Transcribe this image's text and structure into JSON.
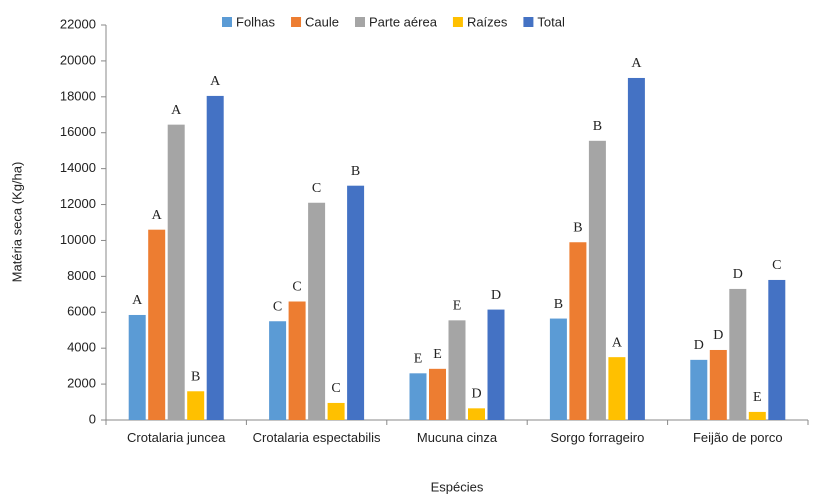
{
  "chart_data": {
    "type": "bar",
    "x_label": "Espécies",
    "y_label": "Matéria seca (Kg/ha)",
    "categories": [
      "Crotalaria juncea",
      "Crotalaria espectabilis",
      "Mucuna cinza",
      "Sorgo forrageiro",
      "Feijão de porco"
    ],
    "series": [
      {
        "name": "Folhas",
        "color": "#5b9bd5",
        "values": [
          5850,
          5500,
          2600,
          5650,
          3350
        ],
        "letters": [
          "A",
          "C",
          "E",
          "B",
          "D"
        ]
      },
      {
        "name": "Caule",
        "color": "#ed7d31",
        "values": [
          10600,
          6600,
          2850,
          9900,
          3900
        ],
        "letters": [
          "A",
          "C",
          "E",
          "B",
          "D"
        ]
      },
      {
        "name": "Parte aérea",
        "color": "#a5a5a5",
        "values": [
          16450,
          12100,
          5550,
          15550,
          7300
        ],
        "letters": [
          "A",
          "C",
          "E",
          "B",
          "D"
        ]
      },
      {
        "name": "Raízes",
        "color": "#ffc000",
        "values": [
          1600,
          950,
          650,
          3500,
          450
        ],
        "letters": [
          "B",
          "C",
          "D",
          "A",
          "E"
        ]
      },
      {
        "name": "Total",
        "color": "#4472c4",
        "values": [
          18050,
          13050,
          6150,
          19050,
          7800
        ],
        "letters": [
          "A",
          "B",
          "D",
          "A",
          "C"
        ]
      }
    ],
    "ylim": [
      0,
      22000
    ],
    "yticks": [
      0,
      2000,
      4000,
      6000,
      8000,
      10000,
      12000,
      14000,
      16000,
      18000,
      20000,
      22000
    ],
    "grid": false,
    "legend": "top"
  }
}
